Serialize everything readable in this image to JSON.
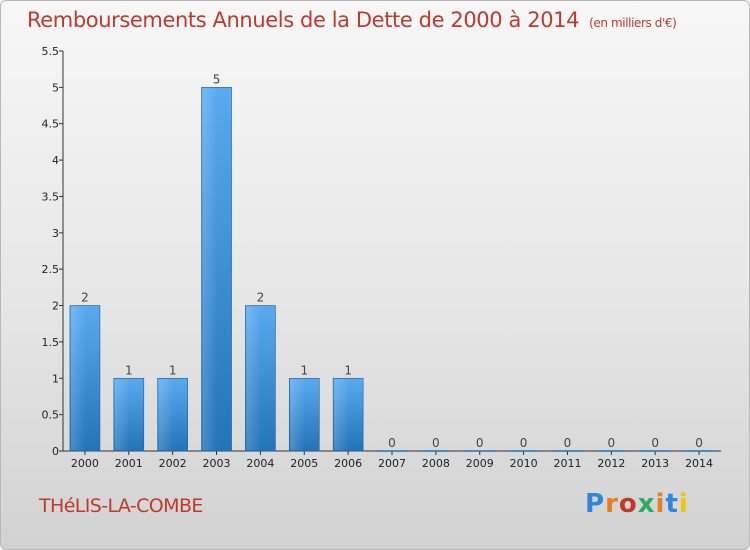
{
  "header": {
    "title": "Remboursements Annuels de la Dette de 2000 à 2014",
    "unit": "(en milliers d'€)"
  },
  "footer": {
    "commune": "THéLIS-LA-COMBE",
    "brand": "Proxiti",
    "brand_colors": [
      "#2e86de",
      "#e67e22",
      "#c0392b",
      "#27ae60",
      "#e67e22",
      "#2e86de",
      "#f1c40f"
    ]
  },
  "chart_data": {
    "type": "bar",
    "title": "Remboursements Annuels de la Dette de 2000 à 2014",
    "subtitle": "(en milliers d'€)",
    "xlabel": "",
    "ylabel": "",
    "categories": [
      "2000",
      "2001",
      "2002",
      "2003",
      "2004",
      "2005",
      "2006",
      "2007",
      "2008",
      "2009",
      "2010",
      "2011",
      "2012",
      "2013",
      "2014"
    ],
    "values": [
      2,
      1,
      1,
      5,
      2,
      1,
      1,
      0,
      0,
      0,
      0,
      0,
      0,
      0,
      0
    ],
    "data_labels": [
      "2",
      "1",
      "1",
      "5",
      "2",
      "1",
      "1",
      "0",
      "0",
      "0",
      "0",
      "0",
      "0",
      "0",
      "0"
    ],
    "ylim": [
      0,
      5.5
    ],
    "yticks": [
      0,
      0.5,
      1,
      1.5,
      2,
      2.5,
      3,
      3.5,
      4,
      4.5,
      5,
      5.5
    ],
    "ytick_labels": [
      "0",
      "0.5",
      "1",
      "1.5",
      "2",
      "2.5",
      "3",
      "3.5",
      "4",
      "4.5",
      "5",
      "5.5"
    ],
    "grid": false,
    "bar_color": "#3a8fd6",
    "title_color": "#c0392b"
  }
}
